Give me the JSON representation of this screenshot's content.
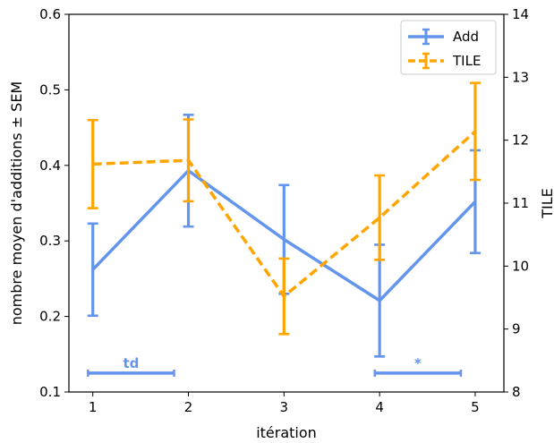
{
  "chart_data": {
    "type": "line",
    "x": [
      1,
      2,
      3,
      4,
      5
    ],
    "xlabel": "itération",
    "ylabel_left": "nombre moyen d'additions ± SEM",
    "ylabel_right": "TILE",
    "xticks": [
      "1",
      "2",
      "3",
      "4",
      "5"
    ],
    "xlim": [
      0.75,
      5.3
    ],
    "ylim_left": [
      0.1,
      0.6
    ],
    "yticks_left": [
      "0.1",
      "0.2",
      "0.3",
      "0.4",
      "0.5",
      "0.6"
    ],
    "ylim_right": [
      8,
      14
    ],
    "yticks_right": [
      "8",
      "9",
      "10",
      "11",
      "12",
      "13",
      "14"
    ],
    "legend_position": "top-right",
    "series": [
      {
        "name": "Add",
        "axis": "left",
        "color": "#6495ED",
        "linestyle": "solid",
        "values": [
          0.262,
          0.393,
          0.302,
          0.221,
          0.352
        ],
        "errors": [
          0.061,
          0.074,
          0.072,
          0.074,
          0.068
        ]
      },
      {
        "name": "TILE",
        "axis": "right",
        "color": "#FFA500",
        "linestyle": "dashed",
        "values": [
          11.62,
          11.68,
          9.52,
          10.77,
          12.14
        ],
        "errors": [
          0.7,
          0.65,
          0.6,
          0.67,
          0.77
        ]
      }
    ],
    "annotations": [
      {
        "label": "td",
        "x_start": 0.95,
        "x_end": 1.85,
        "y": 0.125,
        "color": "#6495ED"
      },
      {
        "label": "*",
        "x_start": 3.95,
        "x_end": 4.85,
        "y": 0.125,
        "color": "#6495ED"
      }
    ]
  }
}
